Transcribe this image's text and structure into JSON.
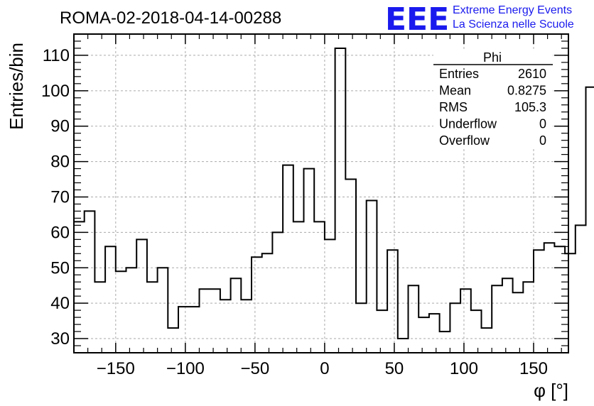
{
  "chart_data": {
    "type": "histogram",
    "title": "ROMA-02-2018-04-14-00288",
    "xlabel": "φ [°]",
    "ylabel": "Entries/bin",
    "xlim": [
      -180,
      175
    ],
    "ylim": [
      26,
      116
    ],
    "xticks": [
      -150,
      -100,
      -50,
      0,
      50,
      100,
      150
    ],
    "xtick_labels": [
      "−150",
      "−100",
      "−50",
      "0",
      "50",
      "100",
      "150"
    ],
    "yticks": [
      30,
      40,
      50,
      60,
      70,
      80,
      90,
      100,
      110
    ],
    "ytick_labels": [
      "30",
      "40",
      "50",
      "60",
      "70",
      "80",
      "90",
      "100",
      "110"
    ],
    "grid": true,
    "bin_start": -180,
    "bin_width": 7.5,
    "values": [
      63,
      66,
      46,
      56,
      49,
      50,
      58,
      46,
      50,
      33,
      39,
      39,
      44,
      44,
      41,
      47,
      41,
      53,
      54,
      60,
      79,
      63,
      78,
      63,
      58,
      112,
      75,
      40,
      69,
      38,
      55,
      30,
      45,
      36,
      37,
      32,
      40,
      44,
      38,
      33,
      45,
      47,
      43,
      46,
      55,
      57,
      56,
      54,
      62,
      101
    ],
    "line_color": "#000000"
  },
  "stats_box": {
    "title": "Phi",
    "rows": [
      {
        "label": "Entries",
        "value": "2610"
      },
      {
        "label": "Mean",
        "value": "0.8275"
      },
      {
        "label": "RMS",
        "value": "105.3"
      },
      {
        "label": "Underflow",
        "value": "0"
      },
      {
        "label": "Overflow",
        "value": "0"
      }
    ]
  },
  "logo": {
    "text": "EEE",
    "line1": "Extreme Energy Events",
    "line2": "La Scienza nelle Scuole",
    "color": "#1a1aee"
  }
}
